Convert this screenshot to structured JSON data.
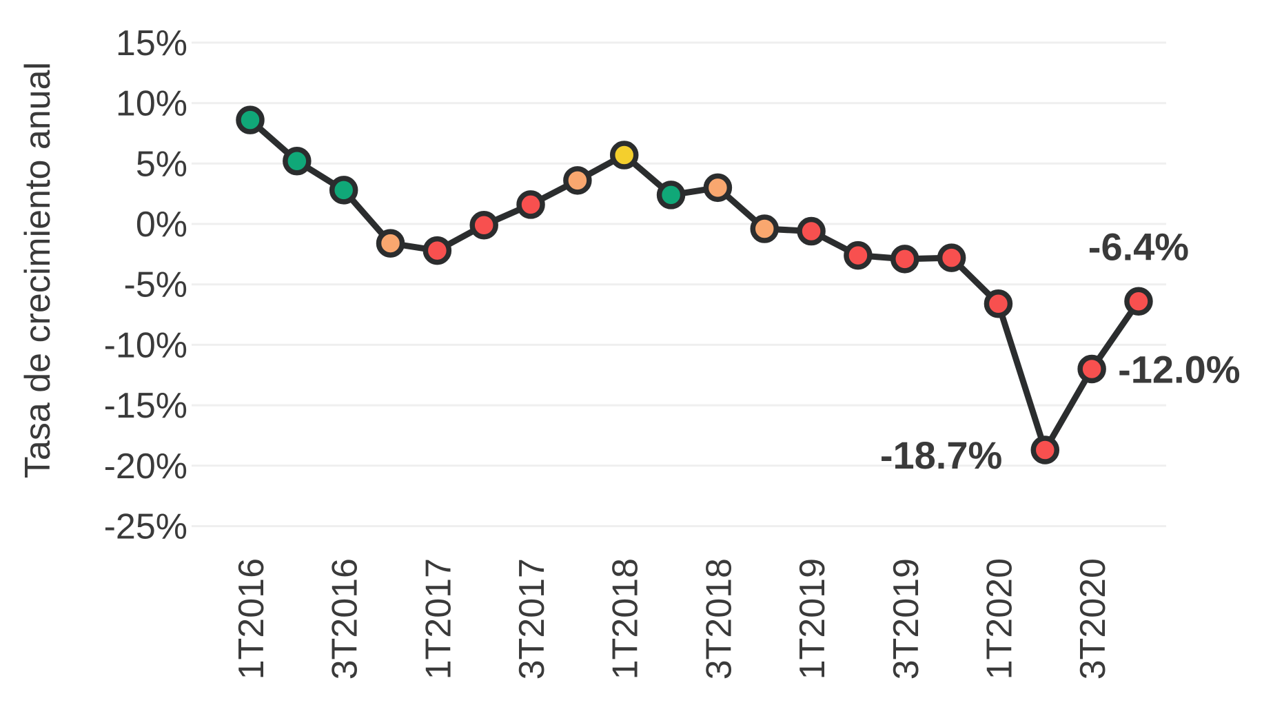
{
  "chart_data": {
    "type": "line",
    "title": "",
    "xlabel": "",
    "ylabel": "Tasa de crecimiento anual",
    "x": [
      "1T2016",
      "2T2016",
      "3T2016",
      "4T2016",
      "1T2017",
      "2T2017",
      "3T2017",
      "4T2017",
      "1T2018",
      "2T2018",
      "3T2018",
      "4T2018",
      "1T2019",
      "2T2019",
      "3T2019",
      "4T2019",
      "1T2020",
      "2T2020",
      "3T2020",
      "4T2020"
    ],
    "x_ticks": [
      {
        "i": 0,
        "label": "1T2016"
      },
      {
        "i": 2,
        "label": "3T2016"
      },
      {
        "i": 4,
        "label": "1T2017"
      },
      {
        "i": 6,
        "label": "3T2017"
      },
      {
        "i": 8,
        "label": "1T2018"
      },
      {
        "i": 10,
        "label": "3T2018"
      },
      {
        "i": 12,
        "label": "1T2019"
      },
      {
        "i": 14,
        "label": "3T2019"
      },
      {
        "i": 16,
        "label": "1T2020"
      },
      {
        "i": 18,
        "label": "3T2020"
      }
    ],
    "series": [
      {
        "name": "Tasa de crecimiento anual",
        "values": [
          8.6,
          5.2,
          2.8,
          -1.6,
          -2.2,
          -0.1,
          1.6,
          3.6,
          5.7,
          2.4,
          3.0,
          -0.4,
          -0.6,
          -2.6,
          -2.9,
          -2.8,
          -6.6,
          -18.7,
          -12.0,
          -6.4
        ]
      }
    ],
    "point_colors": [
      "green",
      "green",
      "green",
      "orange",
      "red",
      "red",
      "red",
      "orange",
      "yellow",
      "green",
      "orange",
      "orange",
      "red",
      "red",
      "red",
      "red",
      "red",
      "red",
      "red",
      "red"
    ],
    "annotations": [
      {
        "point": 17,
        "text": "-18.7%",
        "placement": "left"
      },
      {
        "point": 18,
        "text": "-12.0%",
        "placement": "right"
      },
      {
        "point": 19,
        "text": "-6.4%",
        "placement": "above"
      }
    ],
    "ylim": [
      -25,
      15
    ],
    "yticks": [
      {
        "v": 15,
        "label": "15%"
      },
      {
        "v": 10,
        "label": "10%"
      },
      {
        "v": 5,
        "label": "5%"
      },
      {
        "v": 0,
        "label": "0%"
      },
      {
        "v": -5,
        "label": "-5%"
      },
      {
        "v": -10,
        "label": "-10%"
      },
      {
        "v": -15,
        "label": "-15%"
      },
      {
        "v": -20,
        "label": "-20%"
      },
      {
        "v": -25,
        "label": "-25%"
      }
    ],
    "grid": true,
    "legend": "none",
    "colors": {
      "green": "#10A878",
      "orange": "#F9A76F",
      "red": "#F8504F",
      "yellow": "#F4CF2D",
      "line": "#2B2D2E",
      "grid": "#EFEFEF",
      "text": "#3A3A3A",
      "background": "#FFFFFF"
    }
  }
}
